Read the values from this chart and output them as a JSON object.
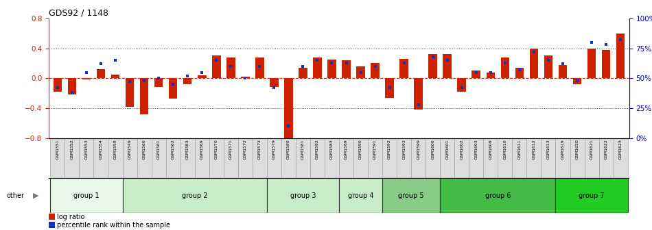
{
  "title": "GDS92 / 1148",
  "samples": [
    "GSM1551",
    "GSM1552",
    "GSM1553",
    "GSM1554",
    "GSM1559",
    "GSM1549",
    "GSM1560",
    "GSM1561",
    "GSM1562",
    "GSM1563",
    "GSM1569",
    "GSM1570",
    "GSM1571",
    "GSM1572",
    "GSM1573",
    "GSM1579",
    "GSM1580",
    "GSM1581",
    "GSM1582",
    "GSM1583",
    "GSM1589",
    "GSM1590",
    "GSM1591",
    "GSM1592",
    "GSM1593",
    "GSM1599",
    "GSM1600",
    "GSM1601",
    "GSM1602",
    "GSM1603",
    "GSM1609",
    "GSM1610",
    "GSM1611",
    "GSM1612",
    "GSM1613",
    "GSM1619",
    "GSM1620",
    "GSM1621",
    "GSM1622",
    "GSM1623"
  ],
  "log_ratio": [
    -0.18,
    -0.22,
    -0.02,
    0.12,
    0.05,
    -0.38,
    -0.48,
    -0.12,
    -0.27,
    -0.08,
    0.04,
    0.3,
    0.28,
    0.02,
    0.28,
    -0.12,
    -0.82,
    0.14,
    0.28,
    0.25,
    0.24,
    0.16,
    0.2,
    -0.26,
    0.26,
    -0.42,
    0.32,
    0.32,
    -0.18,
    0.1,
    0.08,
    0.28,
    0.14,
    0.4,
    0.3,
    0.18,
    -0.08,
    0.4,
    0.38,
    0.6
  ],
  "percentile": [
    42,
    38,
    55,
    62,
    65,
    47,
    48,
    50,
    45,
    52,
    55,
    65,
    60,
    50,
    60,
    42,
    10,
    60,
    65,
    63,
    63,
    55,
    60,
    42,
    63,
    28,
    68,
    65,
    42,
    55,
    55,
    63,
    57,
    72,
    65,
    62,
    48,
    80,
    78,
    82
  ],
  "group_data": [
    {
      "name": "group 1",
      "start": 0,
      "end": 4,
      "color": "#e8f8e8"
    },
    {
      "name": "group 2",
      "start": 5,
      "end": 14,
      "color": "#c8ecc8"
    },
    {
      "name": "group 3",
      "start": 15,
      "end": 19,
      "color": "#c8ecc8"
    },
    {
      "name": "group 4",
      "start": 20,
      "end": 22,
      "color": "#c8ecc8"
    },
    {
      "name": "group 5",
      "start": 23,
      "end": 26,
      "color": "#88cc88"
    },
    {
      "name": "group 6",
      "start": 27,
      "end": 34,
      "color": "#44bb44"
    },
    {
      "name": "group 7",
      "start": 35,
      "end": 39,
      "color": "#22cc22"
    }
  ],
  "ylim_left": [
    -0.8,
    0.8
  ],
  "ylim_right": [
    0,
    100
  ],
  "yticks_left": [
    -0.8,
    -0.4,
    0.0,
    0.4,
    0.8
  ],
  "yticks_right": [
    0,
    25,
    50,
    75,
    100
  ],
  "ytick_labels_right": [
    "0%",
    "25%",
    "50%",
    "75%",
    "100%"
  ],
  "bar_color": "#cc2200",
  "dot_color": "#1133bb",
  "bg_color": "#ffffff",
  "left_axis_color": "#cc2200",
  "right_axis_color": "#0000cc",
  "title_color": "#000000",
  "dotted_line_color": "#555555",
  "zero_line_color": "#cc2200",
  "xtick_cell_color": "#dddddd",
  "xtick_border_color": "#999999"
}
